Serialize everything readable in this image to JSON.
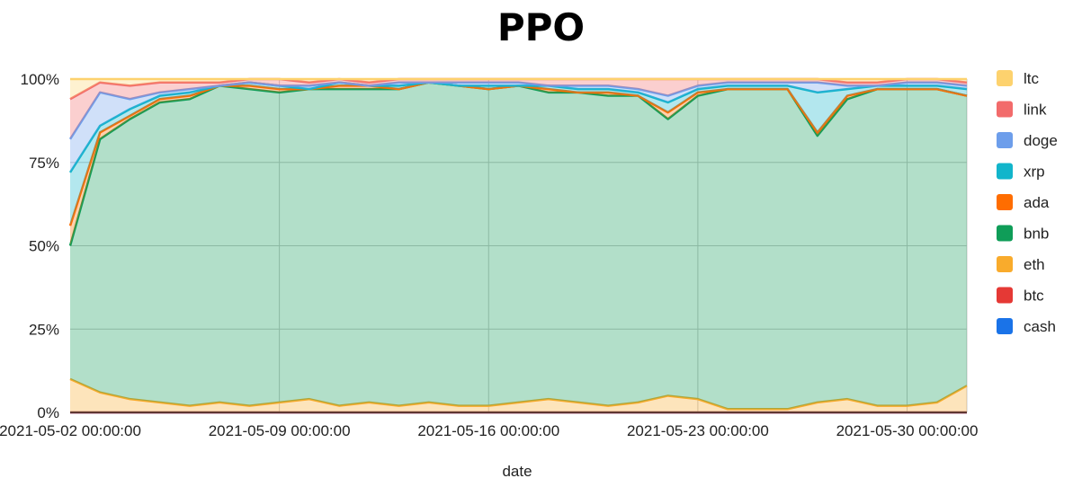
{
  "chart_data": {
    "type": "area",
    "stacked": "percent",
    "title": "PPO",
    "xlabel": "date",
    "ylabel": "",
    "ylim": [
      0,
      100
    ],
    "y_ticks": [
      "0%",
      "25%",
      "50%",
      "75%",
      "100%"
    ],
    "x_ticks": [
      "2021-05-02 00:00:00",
      "2021-05-09 00:00:00",
      "2021-05-16 00:00:00",
      "2021-05-23 00:00:00",
      "2021-05-30 00:00:00"
    ],
    "x_range": [
      "2021-05-02 00:00:00",
      "2021-06-01 00:00:00"
    ],
    "grid": true,
    "legend_position": "right",
    "series_order_note": "",
    "dates": [
      "2021-05-02",
      "2021-05-03",
      "2021-05-04",
      "2021-05-05",
      "2021-05-06",
      "2021-05-07",
      "2021-05-08",
      "2021-05-09",
      "2021-05-10",
      "2021-05-11",
      "2021-05-12",
      "2021-05-13",
      "2021-05-14",
      "2021-05-15",
      "2021-05-16",
      "2021-05-17",
      "2021-05-18",
      "2021-05-19",
      "2021-05-20",
      "2021-05-21",
      "2021-05-22",
      "2021-05-23",
      "2021-05-24",
      "2021-05-25",
      "2021-05-26",
      "2021-05-27",
      "2021-05-28",
      "2021-05-29",
      "2021-05-30",
      "2021-05-31",
      "2021-06-01"
    ],
    "series": [
      {
        "name": "cash",
        "color": "#1a73e8",
        "values": [
          0,
          0,
          0,
          0,
          0,
          0,
          0,
          0,
          0,
          0,
          0,
          0,
          0,
          0,
          0,
          0,
          0,
          0,
          0,
          0,
          0,
          0,
          0,
          0,
          0,
          0,
          0,
          0,
          0,
          0,
          0
        ]
      },
      {
        "name": "btc",
        "color": "#e53935",
        "values": [
          0,
          0,
          0,
          0,
          0,
          0,
          0,
          0,
          0,
          0,
          0,
          0,
          0,
          0,
          0,
          0,
          0,
          0,
          0,
          0,
          0,
          0,
          0,
          0,
          0,
          0,
          0,
          0,
          0,
          0,
          0
        ]
      },
      {
        "name": "eth",
        "color": "#f9ab2c",
        "values": [
          10,
          6,
          4,
          3,
          2,
          3,
          2,
          3,
          4,
          2,
          3,
          2,
          3,
          2,
          2,
          3,
          4,
          3,
          2,
          3,
          5,
          4,
          1,
          1,
          1,
          3,
          4,
          2,
          2,
          3,
          8
        ]
      },
      {
        "name": "bnb",
        "color": "#0f9d58",
        "values": [
          40,
          76,
          84,
          90,
          92,
          95,
          95,
          93,
          93,
          95,
          94,
          95,
          96,
          96,
          95,
          95,
          92,
          93,
          93,
          92,
          83,
          91,
          96,
          96,
          96,
          80,
          90,
          95,
          95,
          94,
          87
        ]
      },
      {
        "name": "ada",
        "color": "#ff6d00",
        "values": [
          6,
          2,
          1,
          1,
          1,
          0,
          1,
          1,
          0,
          1,
          1,
          0,
          0,
          0,
          0,
          0,
          1,
          0,
          1,
          0,
          2,
          1,
          0,
          0,
          0,
          1,
          1,
          0,
          0,
          0,
          0
        ]
      },
      {
        "name": "xrp",
        "color": "#12b5cb",
        "values": [
          16,
          2,
          2,
          1,
          1,
          0,
          1,
          1,
          0,
          1,
          0,
          1,
          0,
          0,
          1,
          0,
          1,
          1,
          1,
          1,
          3,
          1,
          1,
          1,
          1,
          12,
          2,
          1,
          1,
          1,
          2
        ]
      },
      {
        "name": "doge",
        "color": "#6d9eeb",
        "values": [
          10,
          10,
          3,
          1,
          1,
          0,
          0,
          0,
          1,
          0,
          0,
          1,
          0,
          1,
          1,
          1,
          0,
          1,
          1,
          1,
          2,
          1,
          1,
          1,
          1,
          3,
          1,
          0,
          1,
          1,
          1
        ]
      },
      {
        "name": "link",
        "color": "#f26b6b",
        "values": [
          12,
          3,
          4,
          3,
          2,
          1,
          1,
          2,
          1,
          1,
          1,
          1,
          1,
          1,
          1,
          1,
          2,
          2,
          2,
          3,
          5,
          2,
          1,
          1,
          1,
          1,
          1,
          1,
          1,
          1,
          1
        ]
      },
      {
        "name": "ltc",
        "color": "#fdd26e",
        "values": [
          6,
          1,
          2,
          1,
          1,
          1,
          0,
          0,
          1,
          0,
          1,
          0,
          0,
          0,
          0,
          0,
          0,
          0,
          0,
          0,
          0,
          0,
          0,
          0,
          0,
          0,
          1,
          1,
          0,
          0,
          1
        ]
      }
    ],
    "legend_order": [
      "ltc",
      "link",
      "doge",
      "xrp",
      "ada",
      "bnb",
      "eth",
      "btc",
      "cash"
    ]
  }
}
